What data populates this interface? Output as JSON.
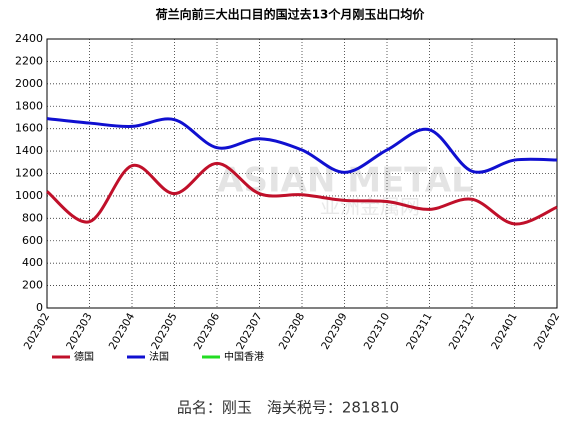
{
  "chart_data": {
    "type": "line",
    "title": "荷兰向前三大出口目的国过去13个月刚玉出口均价",
    "watermark": "ASIAN METAL",
    "watermark_sub": "亚洲金属网",
    "footer": "品名：刚玉　海关税号：281810",
    "categories": [
      "202302",
      "202303",
      "202304",
      "202305",
      "202306",
      "202307",
      "202308",
      "202309",
      "202310",
      "202311",
      "202312",
      "202401",
      "202402"
    ],
    "series": [
      {
        "name": "德国",
        "color": "#c0102a",
        "values": [
          1040,
          770,
          1270,
          1020,
          1290,
          1020,
          1010,
          960,
          950,
          880,
          970,
          750,
          900
        ]
      },
      {
        "name": "法国",
        "color": "#1010d0",
        "values": [
          1690,
          1650,
          1620,
          1680,
          1430,
          1510,
          1410,
          1210,
          1410,
          1590,
          1220,
          1320,
          1320
        ]
      },
      {
        "name": "中国香港",
        "color": "#22dd22",
        "values": [
          null,
          null,
          null,
          null,
          null,
          null,
          null,
          null,
          null,
          null,
          null,
          null,
          null
        ]
      }
    ],
    "ylim": [
      0,
      2400
    ],
    "yticks": [
      0,
      200,
      400,
      600,
      800,
      1000,
      1200,
      1400,
      1600,
      1800,
      2000,
      2200,
      2400
    ],
    "grid": true
  }
}
